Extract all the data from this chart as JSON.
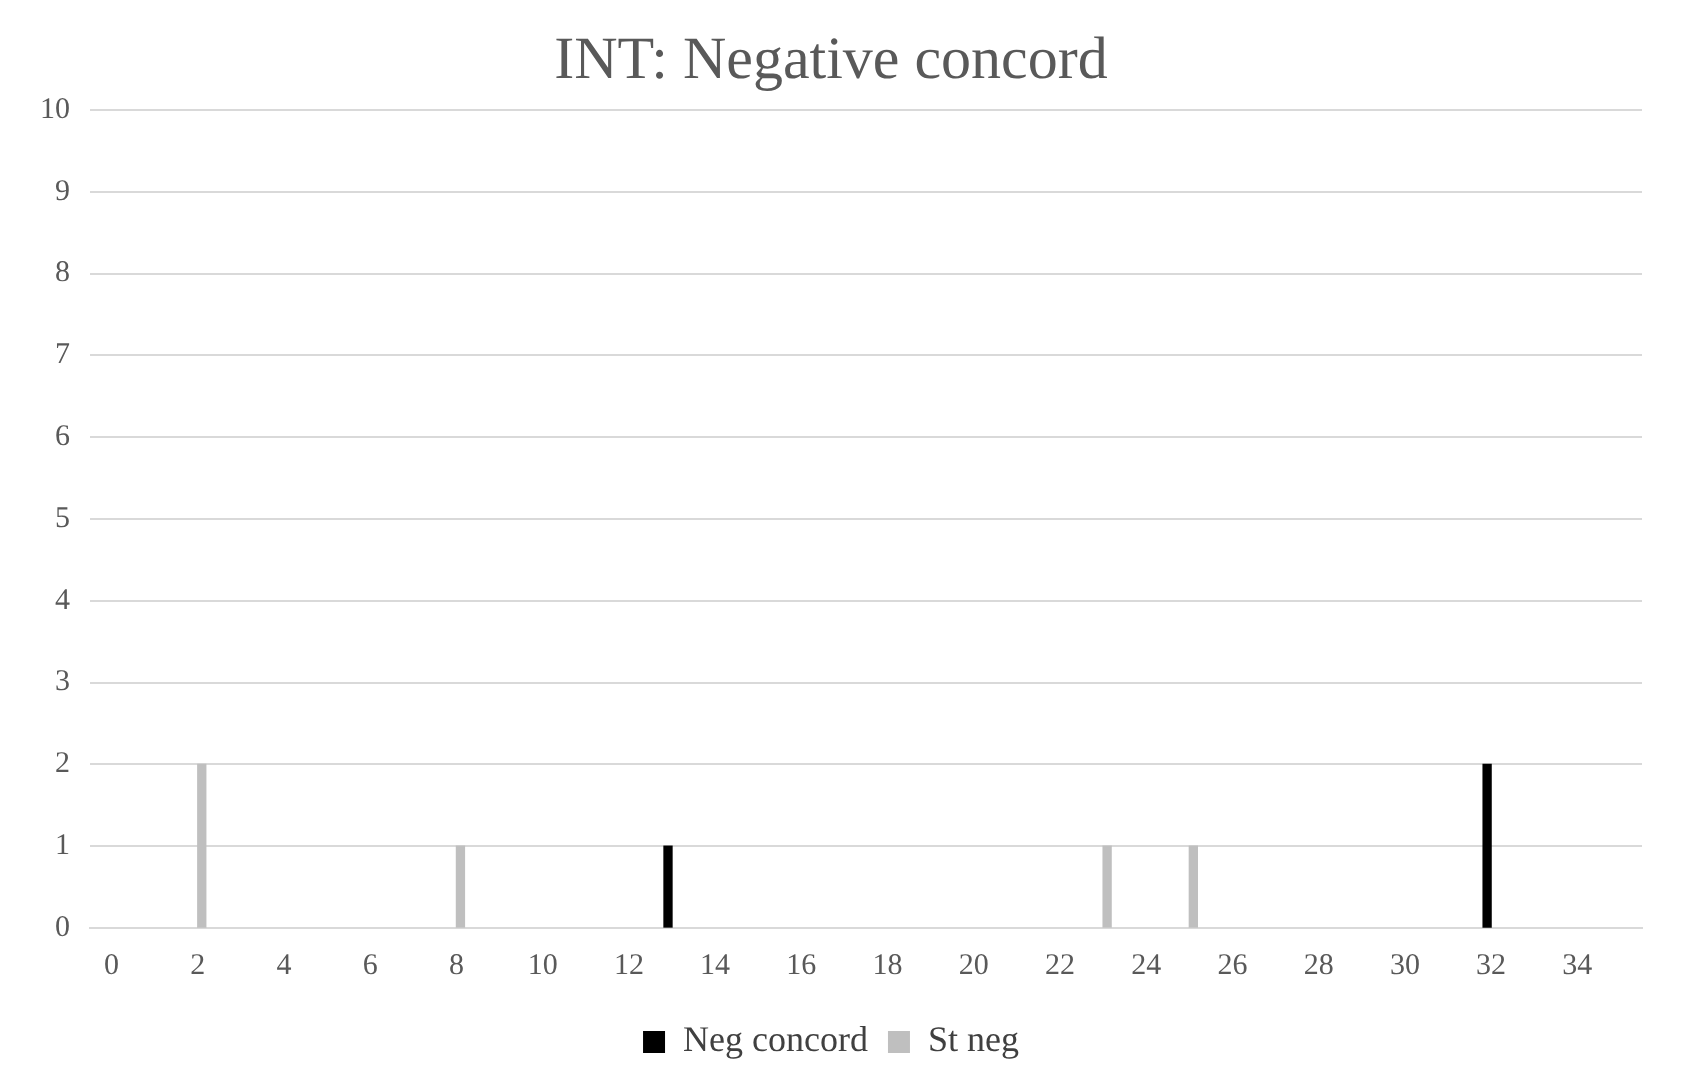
{
  "chart_data": {
    "type": "bar",
    "title": "INT: Negative concord",
    "xlim": [
      -0.5,
      35.5
    ],
    "xticks": [
      0,
      2,
      4,
      6,
      8,
      10,
      12,
      14,
      16,
      18,
      20,
      22,
      24,
      26,
      28,
      30,
      32,
      34
    ],
    "ylim": [
      0,
      10
    ],
    "yticks": [
      0,
      1,
      2,
      3,
      4,
      5,
      6,
      7,
      8,
      9,
      10
    ],
    "series": [
      {
        "name": "Neg concord",
        "color": "#000000",
        "x": [
          13,
          32
        ],
        "values": [
          1,
          2
        ]
      },
      {
        "name": "St neg",
        "color": "#bfbfbf",
        "x": [
          2,
          8,
          23,
          25
        ],
        "values": [
          2,
          1,
          1,
          1
        ]
      }
    ],
    "grid": "y",
    "legend": "bottom"
  }
}
